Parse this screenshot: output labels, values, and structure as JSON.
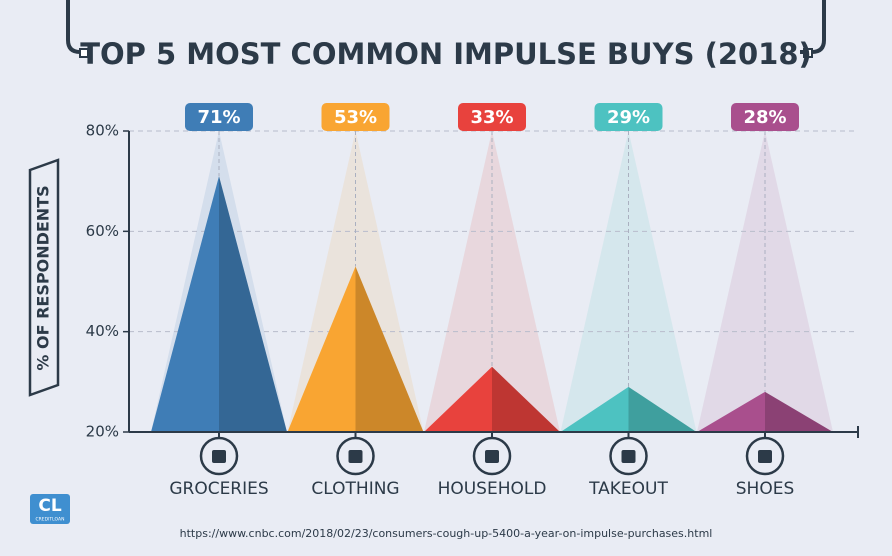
{
  "chart_data": {
    "type": "triangle-bar",
    "title": "TOP 5 MOST COMMON IMPULSE BUYS (2018)",
    "y_label": "% OF RESPONDENTS",
    "categories": [
      "GROCERIES",
      "CLOTHING",
      "HOUSEHOLD",
      "TAKEOUT",
      "SHOES"
    ],
    "values": [
      71,
      53,
      33,
      29,
      28
    ],
    "value_labels": [
      "71%",
      "53%",
      "33%",
      "29%",
      "28%"
    ],
    "colors": [
      "#3f7db6",
      "#f9a532",
      "#e8423d",
      "#4dc2c1",
      "#a94f8d"
    ],
    "ylim": [
      20,
      80
    ],
    "yticks": [
      {
        "value": 20,
        "label": "20%"
      },
      {
        "value": 40,
        "label": "40%"
      },
      {
        "value": 60,
        "label": "60%"
      },
      {
        "value": 80,
        "label": "80%"
      }
    ],
    "grid": true,
    "source": "https://www.cnbc.com/2018/02/23/consumers-cough-up-5400-a-year-on-impulse-purchases.html"
  },
  "logo": {
    "mark": "CL",
    "name": "CREDITLOAN"
  }
}
